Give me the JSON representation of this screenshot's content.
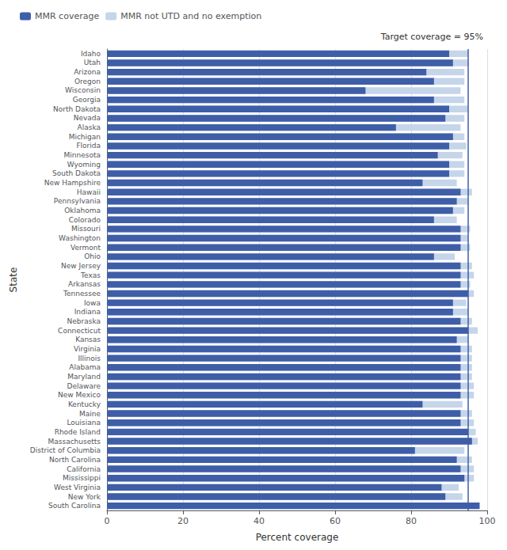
{
  "chart_data": {
    "type": "bar",
    "orientation": "horizontal",
    "xlabel": "Percent coverage",
    "ylabel": "State",
    "categories": [
      "Idaho",
      "Utah",
      "Arizona",
      "Oregon",
      "Wisconsin",
      "Georgia",
      "North Dakota",
      "Nevada",
      "Alaska",
      "Michigan",
      "Florida",
      "Minnesota",
      "Wyoming",
      "South Dakota",
      "New Hampshire",
      "Hawaii",
      "Pennsylvania",
      "Oklahoma",
      "Colorado",
      "Missouri",
      "Washington",
      "Vermont",
      "Ohio",
      "New Jersey",
      "Texas",
      "Arkansas",
      "Tennessee",
      "Iowa",
      "Indiana",
      "Nebraska",
      "Connecticut",
      "Kansas",
      "Virginia",
      "Illinois",
      "Alabama",
      "Maryland",
      "Delaware",
      "New Mexico",
      "Kentucky",
      "Maine",
      "Louisiana",
      "Rhode Island",
      "Massachusetts",
      "District of Columbia",
      "North Carolina",
      "California",
      "Mississippi",
      "West Virginia",
      "New York",
      "South Carolina"
    ],
    "series": [
      {
        "name": "MMR coverage",
        "color": "#3f5ea8",
        "values": [
          90.0,
          91.0,
          84.0,
          86.0,
          68.0,
          86.0,
          90.0,
          89.0,
          76.0,
          91.0,
          90.0,
          87.0,
          90.0,
          90.0,
          83.0,
          93.0,
          92.0,
          91.0,
          86.0,
          93.0,
          93.0,
          93.0,
          86.0,
          93.0,
          93.0,
          93.0,
          95.0,
          91.0,
          91.0,
          93.0,
          95.0,
          92.0,
          93.0,
          93.0,
          93.0,
          93.0,
          93.0,
          93.0,
          83.0,
          93.0,
          93.0,
          95.0,
          96.0,
          81.0,
          92.0,
          93.0,
          94.0,
          88.0,
          89.0,
          98.0
        ]
      },
      {
        "name": "MMR not UTD and no exemption",
        "color": "#c5d5ea",
        "values": [
          95.0,
          95.0,
          94.0,
          94.0,
          93.0,
          94.0,
          95.0,
          94.0,
          93.0,
          94.0,
          94.5,
          93.5,
          94.0,
          94.0,
          92.0,
          96.0,
          95.0,
          94.0,
          92.0,
          95.5,
          95.0,
          95.5,
          91.5,
          96.0,
          96.5,
          95.5,
          96.5,
          94.5,
          95.0,
          96.0,
          97.5,
          95.0,
          96.0,
          96.0,
          96.0,
          96.0,
          96.5,
          96.5,
          93.5,
          96.0,
          96.5,
          97.0,
          97.5,
          94.0,
          96.0,
          96.5,
          96.5,
          92.5,
          93.5,
          98.0
        ]
      }
    ],
    "xlim": [
      0,
      100
    ],
    "xticks": [
      0,
      20,
      40,
      60,
      80,
      100
    ],
    "grid": true,
    "legend": "upper left",
    "annotations": [
      {
        "text": "Target coverage = 95%",
        "x": 95
      }
    ]
  }
}
